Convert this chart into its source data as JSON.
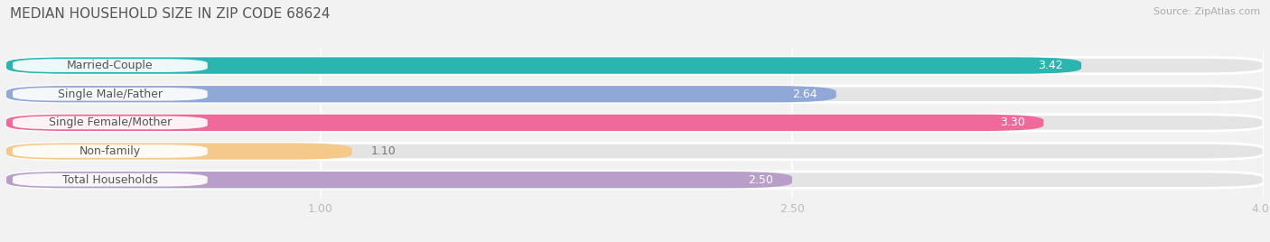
{
  "title": "MEDIAN HOUSEHOLD SIZE IN ZIP CODE 68624",
  "source": "Source: ZipAtlas.com",
  "categories": [
    "Married-Couple",
    "Single Male/Father",
    "Single Female/Mother",
    "Non-family",
    "Total Households"
  ],
  "values": [
    3.42,
    2.64,
    3.3,
    1.1,
    2.5
  ],
  "bar_colors": [
    "#2ab5b0",
    "#8fa8d8",
    "#ef6a9a",
    "#f5c98a",
    "#b89ec8"
  ],
  "label_text_colors": [
    "#555555",
    "#555555",
    "#555555",
    "#888855",
    "#555555"
  ],
  "value_inside": [
    true,
    false,
    true,
    false,
    false
  ],
  "value_colors_inside": [
    "white",
    "white",
    "white",
    "white",
    "white"
  ],
  "value_colors_outside": [
    "#888888",
    "#888888",
    "#888888",
    "#888888",
    "#888888"
  ],
  "xlim": [
    0,
    4.0
  ],
  "xticks": [
    1.0,
    2.5,
    4.0
  ],
  "bar_height": 0.58,
  "background_color": "#f2f2f2",
  "bar_background_color": "#e4e4e4",
  "title_fontsize": 11,
  "label_fontsize": 9,
  "value_fontsize": 9,
  "source_fontsize": 8,
  "grid_color": "#ffffff"
}
